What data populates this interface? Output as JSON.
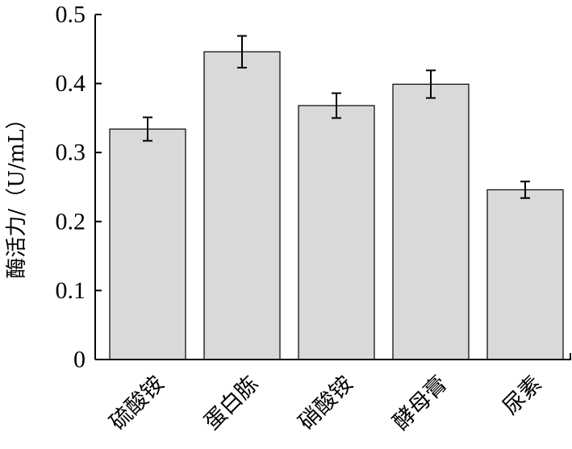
{
  "chart_data": {
    "type": "bar",
    "title": "",
    "xlabel": "",
    "ylabel": "酶活力/（U/mL）",
    "categories": [
      "硫酸铵",
      "蛋白胨",
      "硝酸铵",
      "酵母膏",
      "尿素"
    ],
    "values": [
      0.334,
      0.446,
      0.368,
      0.399,
      0.246
    ],
    "errors": [
      0.017,
      0.023,
      0.018,
      0.02,
      0.012
    ],
    "ylim": [
      0,
      0.5
    ],
    "yticks": [
      0,
      0.1,
      0.2,
      0.3,
      0.4,
      0.5
    ],
    "ytick_labels": [
      "0",
      "0.1",
      "0.2",
      "0.3",
      "0.4",
      "0.5"
    ],
    "grid": false,
    "legend": "none",
    "colors": {
      "bar_fill": "#d9d9d9",
      "bar_stroke": "#000000",
      "axis": "#000000"
    }
  }
}
